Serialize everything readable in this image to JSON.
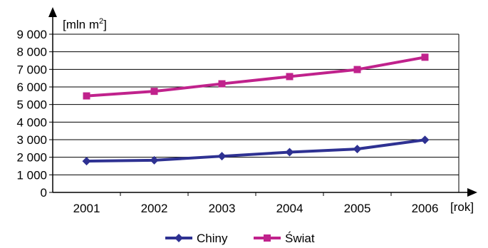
{
  "chart_data": {
    "type": "line",
    "ylabel": "[mln m",
    "ylabel_sup": "2",
    "ylabel_end": "]",
    "xlabel": "[rok]",
    "categories": [
      "2001",
      "2002",
      "2003",
      "2004",
      "2005",
      "2006"
    ],
    "y_ticks": [
      "0",
      "1 000",
      "2 000",
      "3 000",
      "4 000",
      "5 000",
      "6 000",
      "7 000",
      "8 000",
      "9 000"
    ],
    "ylim": [
      0,
      9000
    ],
    "grid": true,
    "legend_position": "bottom",
    "series": [
      {
        "name": "Chiny",
        "color": "#2e3192",
        "marker": "diamond",
        "values": [
          1780,
          1830,
          2060,
          2290,
          2470,
          2990
        ]
      },
      {
        "name": "Świat",
        "color": "#c0228c",
        "marker": "square",
        "values": [
          5490,
          5750,
          6180,
          6590,
          6990,
          7690
        ]
      }
    ]
  }
}
